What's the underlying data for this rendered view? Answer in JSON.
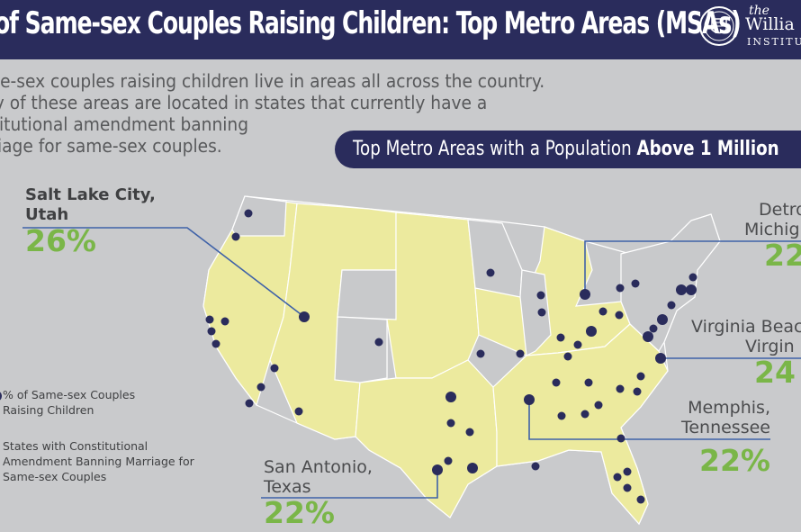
{
  "header": {
    "title": "of Same-sex Couples Raising Children: Top Metro Areas (MSAs)",
    "logo_line1": "the",
    "logo_line2": "Willia",
    "logo_line3": "INSTITU"
  },
  "intro": {
    "line1": "me-sex couples raising children live in areas all across the country.",
    "line2": "ny of these areas are located in states that currently have a",
    "line3": "stitutional amendment banning",
    "line4": "rriage for same-sex couples."
  },
  "banner": {
    "prefix": "Top Metro Areas with a Population ",
    "emphasis": "Above 1 Million"
  },
  "callouts": {
    "salt_lake": {
      "name1": "Salt Lake City,",
      "name2": "Utah",
      "pct": "26%"
    },
    "detroit": {
      "name1": "Detro",
      "name2": "Michig",
      "pct": "22"
    },
    "virginia_beach": {
      "name1": "Virginia Beac",
      "name2": "Virgin",
      "pct": "24"
    },
    "memphis": {
      "name1": "Memphis,",
      "name2": "Tennessee",
      "pct": "22%"
    },
    "san_antonio": {
      "name1": "San Antonio,",
      "name2": "Texas",
      "pct": "22%"
    }
  },
  "legend": {
    "dot_label_1": "% of Same-sex Couples",
    "dot_label_2": "Raising Children",
    "state_label_1": "States with Constitutional",
    "state_label_2": "Amendment Banning Marriage for",
    "state_label_3": "Same-sex Couples"
  },
  "colors": {
    "header": "#2a2c5c",
    "background": "#c9cacc",
    "amendment_state": "#ecea9e",
    "other_state": "#c8c9cb",
    "dot": "#2a2c5c",
    "percent": "#7ab648",
    "leader_line": "#3f62a8"
  }
}
